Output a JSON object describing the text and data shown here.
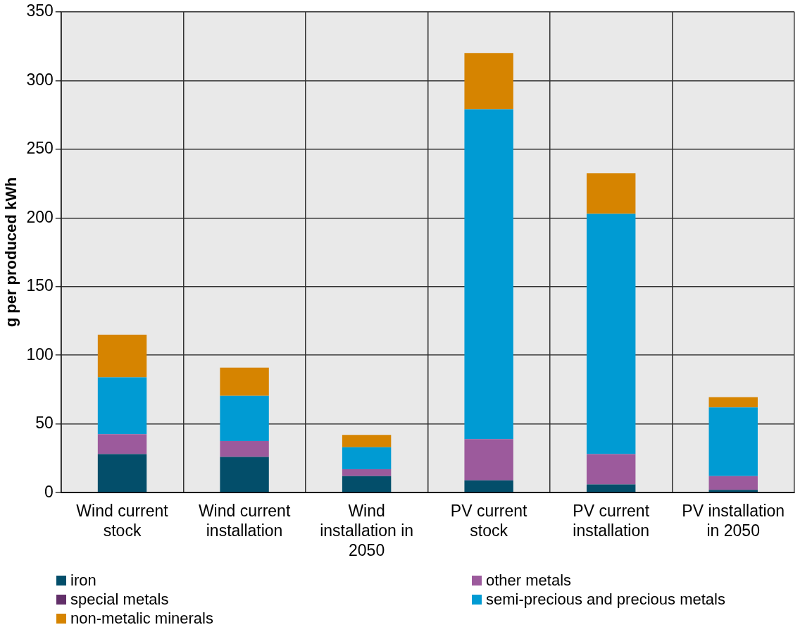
{
  "chart_data": {
    "type": "bar",
    "stacked": true,
    "ylabel": "g per produced kWh",
    "categories": [
      "Wind current stock",
      "Wind current installation",
      "Wind installation in 2050",
      "PV current stock",
      "PV current installation",
      "PV installation in 2050"
    ],
    "series": [
      {
        "name": "iron",
        "color": "#034e6a",
        "values": [
          28,
          26,
          12,
          9,
          6,
          2
        ]
      },
      {
        "name": "special metals",
        "color": "#622f69",
        "values": [
          0,
          0,
          0,
          0,
          0,
          0
        ]
      },
      {
        "name": "other metals",
        "color": "#9c5a9c",
        "values": [
          14.5,
          11.5,
          5,
          30,
          22,
          10
        ]
      },
      {
        "name": "semi-precious and precious metals",
        "color": "#009bd3",
        "values": [
          41.5,
          33,
          16,
          240,
          175,
          50
        ]
      },
      {
        "name": "non-metalic minerals",
        "color": "#d68400",
        "values": [
          31,
          20.5,
          9,
          41,
          29.5,
          7.5
        ]
      }
    ],
    "ylim": [
      0,
      350
    ],
    "yticks": [
      0,
      50,
      100,
      150,
      200,
      250,
      300,
      350
    ],
    "grid": true,
    "legend": "bottom"
  }
}
